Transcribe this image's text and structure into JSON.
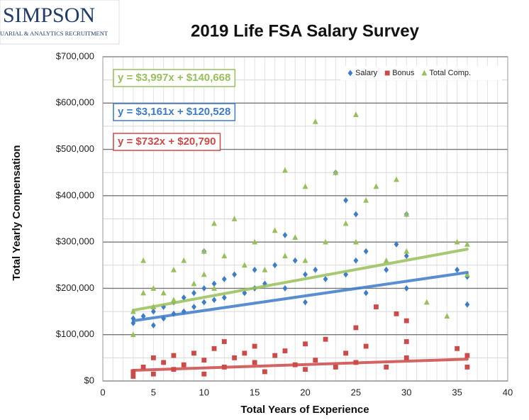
{
  "logo": {
    "name": "SIMPSON",
    "tagline": "UARIAL & ANALYTICS RECRUITMENT"
  },
  "chart_data": {
    "type": "scatter",
    "title": "2019 Life FSA Salary Survey",
    "x_label": "Total Years of Experience",
    "y_label": "Total Yearly Compensation",
    "xlim": [
      0,
      40
    ],
    "xticks": [
      0,
      5,
      10,
      15,
      20,
      25,
      30,
      35,
      40
    ],
    "ylim": [
      0,
      700000
    ],
    "yticks": [
      {
        "value": 0,
        "label": "$0"
      },
      {
        "value": 100000,
        "label": "$100,000"
      },
      {
        "value": 200000,
        "label": "$200,000"
      },
      {
        "value": 300000,
        "label": "$300,000"
      },
      {
        "value": 400000,
        "label": "$400,000"
      },
      {
        "value": 500000,
        "label": "$500,000"
      },
      {
        "value": 600000,
        "label": "$600,000"
      },
      {
        "value": 700000,
        "label": "$700,000"
      }
    ],
    "grid": true,
    "legend": "top-right",
    "series": [
      {
        "name": "Salary",
        "color": "#3d7cc9",
        "marker": "diamond",
        "x": [
          3,
          3,
          4,
          5,
          5,
          6,
          6,
          7,
          7,
          8,
          8,
          9,
          9,
          10,
          10,
          10,
          11,
          11,
          12,
          12,
          13,
          14,
          15,
          15,
          16,
          17,
          18,
          18,
          19,
          20,
          20,
          21,
          22,
          23,
          24,
          24,
          25,
          25,
          26,
          26,
          28,
          29,
          30,
          30,
          30,
          35,
          36,
          36
        ],
        "values": [
          125000,
          135000,
          140000,
          150000,
          120000,
          160000,
          135000,
          170000,
          145000,
          180000,
          150000,
          190000,
          160000,
          200000,
          170000,
          280000,
          210000,
          175000,
          220000,
          180000,
          230000,
          190000,
          240000,
          200000,
          210000,
          250000,
          315000,
          200000,
          260000,
          230000,
          170000,
          240000,
          220000,
          450000,
          390000,
          230000,
          360000,
          260000,
          280000,
          190000,
          240000,
          295000,
          360000,
          270000,
          200000,
          240000,
          225000,
          165000
        ],
        "trend": {
          "slope": 3161,
          "intercept": 120528,
          "label": "y = $3,161x + $120,528"
        }
      },
      {
        "name": "Bonus",
        "color": "#cc4a48",
        "marker": "square",
        "x": [
          3,
          3,
          4,
          5,
          5,
          6,
          7,
          7,
          8,
          9,
          10,
          10,
          11,
          12,
          12,
          13,
          14,
          15,
          15,
          16,
          17,
          18,
          19,
          20,
          20,
          21,
          22,
          23,
          24,
          25,
          25,
          26,
          27,
          28,
          29,
          30,
          30,
          30,
          35,
          36,
          36
        ],
        "values": [
          20000,
          10000,
          30000,
          50000,
          15000,
          40000,
          25000,
          55000,
          35000,
          60000,
          45000,
          15000,
          70000,
          85000,
          30000,
          50000,
          60000,
          40000,
          75000,
          20000,
          55000,
          65000,
          35000,
          80000,
          25000,
          45000,
          90000,
          30000,
          60000,
          115000,
          40000,
          75000,
          160000,
          30000,
          145000,
          130000,
          85000,
          50000,
          70000,
          55000,
          30000
        ],
        "trend": {
          "slope": 732,
          "intercept": 20790,
          "label": "y = $732x + $20,790"
        }
      },
      {
        "name": "Total Comp.",
        "color": "#98c05a",
        "marker": "triangle",
        "x": [
          3,
          3,
          4,
          4,
          5,
          5,
          6,
          7,
          7,
          8,
          9,
          10,
          10,
          11,
          11,
          12,
          13,
          14,
          15,
          16,
          17,
          18,
          18,
          19,
          20,
          20,
          21,
          22,
          23,
          24,
          25,
          25,
          26,
          27,
          28,
          29,
          30,
          30,
          32,
          34,
          35,
          36,
          36
        ],
        "values": [
          150000,
          100000,
          190000,
          260000,
          200000,
          160000,
          190000,
          240000,
          175000,
          260000,
          210000,
          280000,
          230000,
          340000,
          200000,
          270000,
          350000,
          250000,
          300000,
          240000,
          325000,
          455000,
          270000,
          310000,
          420000,
          260000,
          560000,
          300000,
          450000,
          340000,
          575000,
          300000,
          390000,
          420000,
          260000,
          435000,
          360000,
          280000,
          170000,
          140000,
          300000,
          295000,
          230000
        ],
        "trend": {
          "slope": 3997,
          "intercept": 140668,
          "label": "y = $3,997x + $140,668"
        }
      }
    ]
  }
}
